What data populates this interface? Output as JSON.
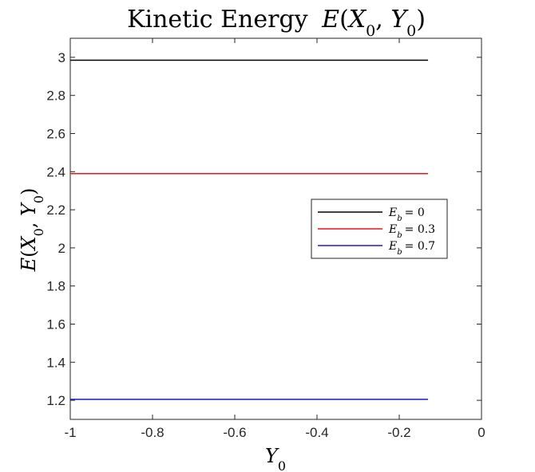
{
  "chart_data": {
    "type": "line",
    "title": {
      "prefix": "Kinetic Energy",
      "func": "E",
      "var1": "X",
      "var2": "Y",
      "sub": "0"
    },
    "xlabel": {
      "var": "Y",
      "sub": "0"
    },
    "ylabel": {
      "func": "E",
      "var1": "X",
      "var2": "Y",
      "sub": "0"
    },
    "xlim": [
      -1,
      0
    ],
    "ylim": [
      1.1,
      3.1
    ],
    "xticks": [
      -1,
      -0.8,
      -0.6,
      -0.4,
      -0.2,
      0
    ],
    "xtick_labels": [
      "-1",
      "-0.8",
      "-0.6",
      "-0.4",
      "-0.2",
      "0"
    ],
    "yticks": [
      1.2,
      1.4,
      1.6,
      1.8,
      2,
      2.2,
      2.4,
      2.6,
      2.8,
      3
    ],
    "ytick_labels": [
      "1.2",
      "1.4",
      "1.6",
      "1.8",
      "2",
      "2.2",
      "2.4",
      "2.6",
      "2.8",
      "3"
    ],
    "grid": false,
    "legend_position": "right",
    "series": [
      {
        "name": {
          "var": "E",
          "sub": "b",
          "rel": "= 0"
        },
        "color": "#000000",
        "x": [
          -1,
          -0.13
        ],
        "y": [
          2.985,
          2.985
        ]
      },
      {
        "name": {
          "var": "E",
          "sub": "b",
          "rel": "= 0.3"
        },
        "color": "#e8141c",
        "x": [
          -1,
          -0.13
        ],
        "y": [
          2.39,
          2.39
        ]
      },
      {
        "name": {
          "var": "E",
          "sub": "b",
          "rel": "= 0.7"
        },
        "color": "#1a1acf",
        "x": [
          -1,
          -0.13
        ],
        "y": [
          1.205,
          1.205
        ]
      }
    ]
  }
}
